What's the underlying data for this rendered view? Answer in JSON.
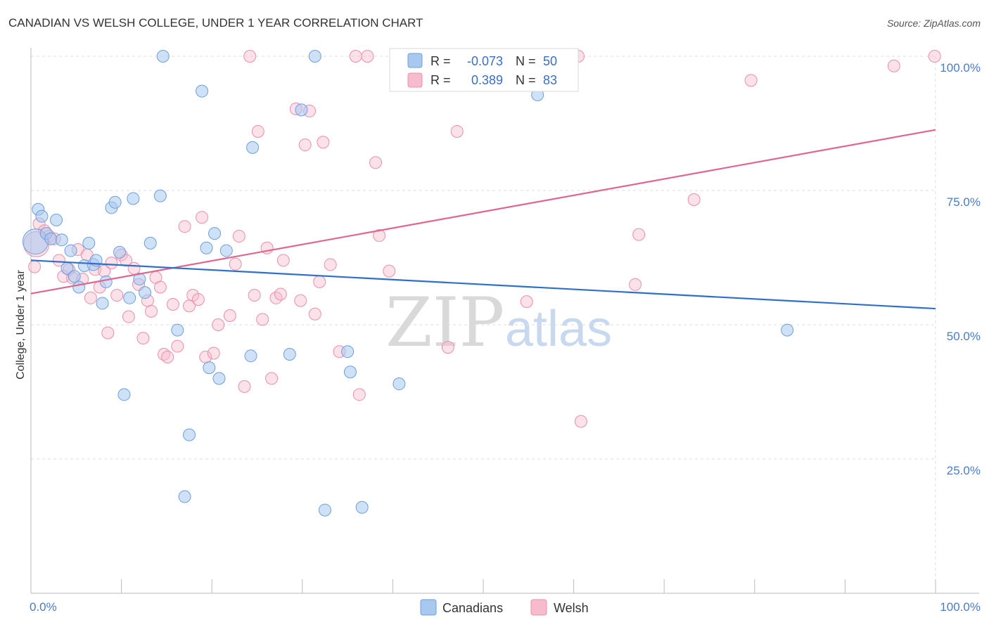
{
  "header": {
    "title": "CANADIAN VS WELSH COLLEGE, UNDER 1 YEAR CORRELATION CHART",
    "source": "Source: ZipAtlas.com"
  },
  "watermark": {
    "zip": "ZIP",
    "atlas": "atlas"
  },
  "legend": {
    "r_label": "R =",
    "n_label": "N =",
    "canadians": {
      "r": "-0.073",
      "n": "50"
    },
    "welsh": {
      "r": "0.389",
      "n": "83"
    }
  },
  "colors": {
    "canadians_fill": "#a8c8f0",
    "canadians_stroke": "#6d9fe0",
    "canadians_line": "#2f6fcc",
    "welsh_fill": "#f6bccd",
    "welsh_stroke": "#ec8fab",
    "welsh_line": "#e06690",
    "grid": "#dddddd",
    "tick_label": "#4a7cc9"
  },
  "chart_data": {
    "type": "scatter",
    "title": "CANADIAN VS WELSH COLLEGE, UNDER 1 YEAR CORRELATION CHART",
    "xlabel": "",
    "ylabel": "College, Under 1 year",
    "xlim": [
      0,
      100
    ],
    "ylim": [
      0,
      100
    ],
    "x_tick_labels": [
      "0.0%",
      "100.0%"
    ],
    "y_ticks": [
      {
        "value": 25,
        "label": "25.0%"
      },
      {
        "value": 50,
        "label": "50.0%"
      },
      {
        "value": 75,
        "label": "75.0%"
      },
      {
        "value": 100,
        "label": "100.0%"
      }
    ],
    "grid": true,
    "legend_position": "top-center",
    "series": [
      {
        "name": "Canadians",
        "r": -0.073,
        "n": 50,
        "trend": {
          "x": [
            0,
            100
          ],
          "y": [
            62.0,
            53.0
          ]
        },
        "points": [
          {
            "x": 0.5,
            "y": 65.5
          },
          {
            "x": 0.8,
            "y": 71.5
          },
          {
            "x": 1.2,
            "y": 70.2
          },
          {
            "x": 1.7,
            "y": 67.0
          },
          {
            "x": 2.2,
            "y": 66.0
          },
          {
            "x": 2.8,
            "y": 69.5
          },
          {
            "x": 3.4,
            "y": 65.8
          },
          {
            "x": 4.0,
            "y": 60.5
          },
          {
            "x": 4.4,
            "y": 63.8
          },
          {
            "x": 4.8,
            "y": 59.0
          },
          {
            "x": 5.3,
            "y": 57.0
          },
          {
            "x": 5.9,
            "y": 61.0
          },
          {
            "x": 6.4,
            "y": 65.2
          },
          {
            "x": 6.9,
            "y": 61.2
          },
          {
            "x": 7.2,
            "y": 62.0
          },
          {
            "x": 7.9,
            "y": 54.0
          },
          {
            "x": 8.3,
            "y": 58.0
          },
          {
            "x": 8.9,
            "y": 71.8
          },
          {
            "x": 9.3,
            "y": 72.8
          },
          {
            "x": 9.8,
            "y": 63.5
          },
          {
            "x": 10.3,
            "y": 37.0
          },
          {
            "x": 10.9,
            "y": 55.0
          },
          {
            "x": 11.3,
            "y": 73.5
          },
          {
            "x": 12.0,
            "y": 58.5
          },
          {
            "x": 12.6,
            "y": 56.0
          },
          {
            "x": 13.2,
            "y": 65.2
          },
          {
            "x": 14.3,
            "y": 74.0
          },
          {
            "x": 14.6,
            "y": 100.0
          },
          {
            "x": 16.2,
            "y": 49.0
          },
          {
            "x": 17.0,
            "y": 18.0
          },
          {
            "x": 17.5,
            "y": 29.5
          },
          {
            "x": 18.9,
            "y": 93.5
          },
          {
            "x": 19.4,
            "y": 64.3
          },
          {
            "x": 19.7,
            "y": 42.0
          },
          {
            "x": 20.3,
            "y": 67.0
          },
          {
            "x": 20.8,
            "y": 40.0
          },
          {
            "x": 21.6,
            "y": 63.8
          },
          {
            "x": 24.3,
            "y": 44.2
          },
          {
            "x": 24.5,
            "y": 83.0
          },
          {
            "x": 28.6,
            "y": 44.5
          },
          {
            "x": 29.9,
            "y": 90.0
          },
          {
            "x": 31.4,
            "y": 100.0
          },
          {
            "x": 32.5,
            "y": 15.5
          },
          {
            "x": 35.0,
            "y": 45.0
          },
          {
            "x": 35.3,
            "y": 41.2
          },
          {
            "x": 36.6,
            "y": 16.0
          },
          {
            "x": 40.7,
            "y": 39.0
          },
          {
            "x": 47.5,
            "y": 100.0
          },
          {
            "x": 56.0,
            "y": 92.8
          },
          {
            "x": 83.6,
            "y": 49.0
          }
        ]
      },
      {
        "name": "Welsh",
        "r": 0.389,
        "n": 83,
        "trend": {
          "x": [
            0,
            100
          ],
          "y": [
            55.8,
            86.3
          ]
        },
        "points": [
          {
            "x": 0.4,
            "y": 60.8
          },
          {
            "x": 0.9,
            "y": 68.8
          },
          {
            "x": 1.5,
            "y": 67.5
          },
          {
            "x": 2.0,
            "y": 66.5
          },
          {
            "x": 2.6,
            "y": 66.0
          },
          {
            "x": 3.1,
            "y": 62.0
          },
          {
            "x": 3.6,
            "y": 59.0
          },
          {
            "x": 4.2,
            "y": 60.3
          },
          {
            "x": 4.6,
            "y": 58.7
          },
          {
            "x": 5.2,
            "y": 64.0
          },
          {
            "x": 5.7,
            "y": 58.5
          },
          {
            "x": 6.2,
            "y": 63.0
          },
          {
            "x": 6.6,
            "y": 55.0
          },
          {
            "x": 7.1,
            "y": 60.3
          },
          {
            "x": 7.6,
            "y": 57.0
          },
          {
            "x": 8.1,
            "y": 60.0
          },
          {
            "x": 8.5,
            "y": 48.5
          },
          {
            "x": 8.9,
            "y": 61.5
          },
          {
            "x": 9.5,
            "y": 55.5
          },
          {
            "x": 10.0,
            "y": 63.0
          },
          {
            "x": 10.5,
            "y": 62.0
          },
          {
            "x": 10.8,
            "y": 51.5
          },
          {
            "x": 11.4,
            "y": 60.5
          },
          {
            "x": 11.9,
            "y": 57.5
          },
          {
            "x": 12.4,
            "y": 47.5
          },
          {
            "x": 12.9,
            "y": 54.5
          },
          {
            "x": 13.3,
            "y": 52.5
          },
          {
            "x": 13.8,
            "y": 58.8
          },
          {
            "x": 14.3,
            "y": 57.0
          },
          {
            "x": 14.7,
            "y": 44.5
          },
          {
            "x": 15.1,
            "y": 44.0
          },
          {
            "x": 15.7,
            "y": 53.8
          },
          {
            "x": 16.2,
            "y": 46.0
          },
          {
            "x": 17.0,
            "y": 68.3
          },
          {
            "x": 17.5,
            "y": 53.5
          },
          {
            "x": 17.9,
            "y": 55.5
          },
          {
            "x": 18.5,
            "y": 54.7
          },
          {
            "x": 18.9,
            "y": 70.0
          },
          {
            "x": 19.3,
            "y": 44.0
          },
          {
            "x": 20.2,
            "y": 44.7
          },
          {
            "x": 20.7,
            "y": 50.0
          },
          {
            "x": 22.0,
            "y": 51.7
          },
          {
            "x": 22.6,
            "y": 61.3
          },
          {
            "x": 23.0,
            "y": 66.5
          },
          {
            "x": 23.6,
            "y": 38.5
          },
          {
            "x": 24.2,
            "y": 100.0
          },
          {
            "x": 24.7,
            "y": 55.5
          },
          {
            "x": 25.1,
            "y": 86.0
          },
          {
            "x": 25.6,
            "y": 51.0
          },
          {
            "x": 26.1,
            "y": 64.3
          },
          {
            "x": 26.6,
            "y": 40.0
          },
          {
            "x": 27.1,
            "y": 55.0
          },
          {
            "x": 27.6,
            "y": 55.7
          },
          {
            "x": 27.9,
            "y": 62.0
          },
          {
            "x": 29.3,
            "y": 90.2
          },
          {
            "x": 29.8,
            "y": 54.5
          },
          {
            "x": 30.3,
            "y": 83.5
          },
          {
            "x": 30.8,
            "y": 89.8
          },
          {
            "x": 31.4,
            "y": 52.0
          },
          {
            "x": 31.9,
            "y": 58.0
          },
          {
            "x": 32.3,
            "y": 84.0
          },
          {
            "x": 33.1,
            "y": 61.2
          },
          {
            "x": 34.1,
            "y": 45.0
          },
          {
            "x": 35.9,
            "y": 100.0
          },
          {
            "x": 36.3,
            "y": 37.0
          },
          {
            "x": 37.2,
            "y": 100.0
          },
          {
            "x": 38.1,
            "y": 80.2
          },
          {
            "x": 38.5,
            "y": 66.6
          },
          {
            "x": 39.6,
            "y": 60.0
          },
          {
            "x": 41.3,
            "y": 100.0
          },
          {
            "x": 43.9,
            "y": 100.0
          },
          {
            "x": 46.1,
            "y": 45.8
          },
          {
            "x": 47.1,
            "y": 86.0
          },
          {
            "x": 54.8,
            "y": 54.3
          },
          {
            "x": 60.5,
            "y": 100.0
          },
          {
            "x": 60.8,
            "y": 32.0
          },
          {
            "x": 66.8,
            "y": 57.5
          },
          {
            "x": 67.2,
            "y": 66.8
          },
          {
            "x": 73.3,
            "y": 73.3
          },
          {
            "x": 79.6,
            "y": 95.5
          },
          {
            "x": 95.4,
            "y": 98.2
          },
          {
            "x": 99.9,
            "y": 100.0
          },
          {
            "x": 0.6,
            "y": 65.0
          }
        ]
      }
    ]
  },
  "bottom_legend": [
    "Canadians",
    "Welsh"
  ]
}
